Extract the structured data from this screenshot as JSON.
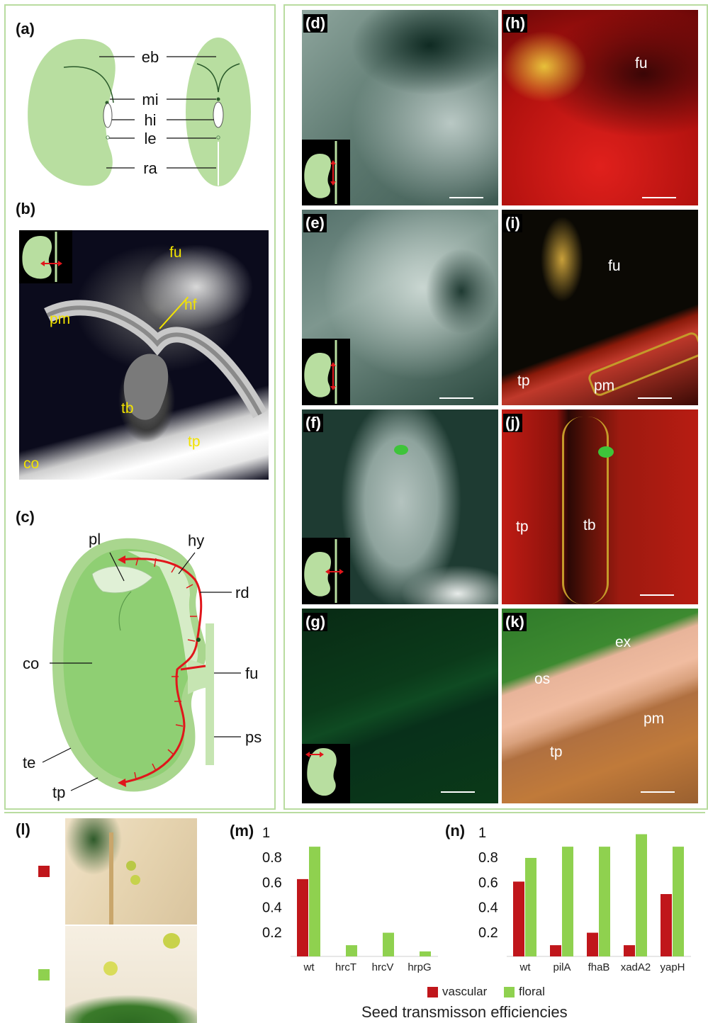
{
  "panels": {
    "a": {
      "label": "(a)",
      "terms": [
        "eb",
        "mi",
        "hi",
        "le",
        "ra"
      ]
    },
    "b": {
      "label": "(b)",
      "terms": {
        "fu": "fu",
        "pm": "pm",
        "hf": "hf",
        "tb": "tb",
        "tp": "tp",
        "co": "co"
      }
    },
    "c": {
      "label": "(c)",
      "terms": {
        "pl": "pl",
        "hy": "hy",
        "rd": "rd",
        "co": "co",
        "fu": "fu",
        "ps": "ps",
        "te": "te",
        "tp": "tp"
      }
    },
    "d": {
      "label": "(d)"
    },
    "e": {
      "label": "(e)"
    },
    "f": {
      "label": "(f)"
    },
    "g": {
      "label": "(g)"
    },
    "h": {
      "label": "(h)",
      "terms": {
        "fu": "fu"
      }
    },
    "i": {
      "label": "(i)",
      "terms": {
        "fu": "fu",
        "tp": "tp",
        "pm": "pm"
      }
    },
    "j": {
      "label": "(j)",
      "terms": {
        "tp": "tp",
        "tb": "tb"
      }
    },
    "k": {
      "label": "(k)",
      "terms": {
        "ex": "ex",
        "os": "os",
        "pm": "pm",
        "tp": "tp"
      }
    },
    "l": {
      "label": "(l)"
    },
    "m": {
      "label": "(m)"
    },
    "n": {
      "label": "(n)"
    }
  },
  "legend": {
    "vascular": "vascular",
    "floral": "floral"
  },
  "caption": "Seed transmisson efficiencies",
  "colors": {
    "vascular": "#c0161b",
    "floral": "#8fd14f",
    "seed": "#b8dea0",
    "arrow": "#e0161b",
    "frame": "#b9dca0"
  },
  "chart_data": [
    {
      "type": "bar",
      "panel": "m",
      "categories": [
        "wt",
        "hrcT",
        "hrcV",
        "hrpG"
      ],
      "series": [
        {
          "name": "vascular",
          "values": [
            0.62,
            0,
            0,
            0
          ]
        },
        {
          "name": "floral",
          "values": [
            0.88,
            0.09,
            0.19,
            0.04
          ]
        }
      ],
      "yticks": [
        "1",
        "0.8",
        "0.6",
        "0.4",
        "0.2"
      ],
      "ylim": [
        0,
        1
      ]
    },
    {
      "type": "bar",
      "panel": "n",
      "categories": [
        "wt",
        "pilA",
        "fhaB",
        "xadA2",
        "yapH"
      ],
      "series": [
        {
          "name": "vascular",
          "values": [
            0.6,
            0.09,
            0.19,
            0.09,
            0.5
          ]
        },
        {
          "name": "floral",
          "values": [
            0.79,
            0.88,
            0.88,
            0.98,
            0.88
          ]
        }
      ],
      "yticks": [
        "1",
        "0.8",
        "0.6",
        "0.4",
        "0.2"
      ],
      "ylim": [
        0,
        1
      ]
    }
  ]
}
